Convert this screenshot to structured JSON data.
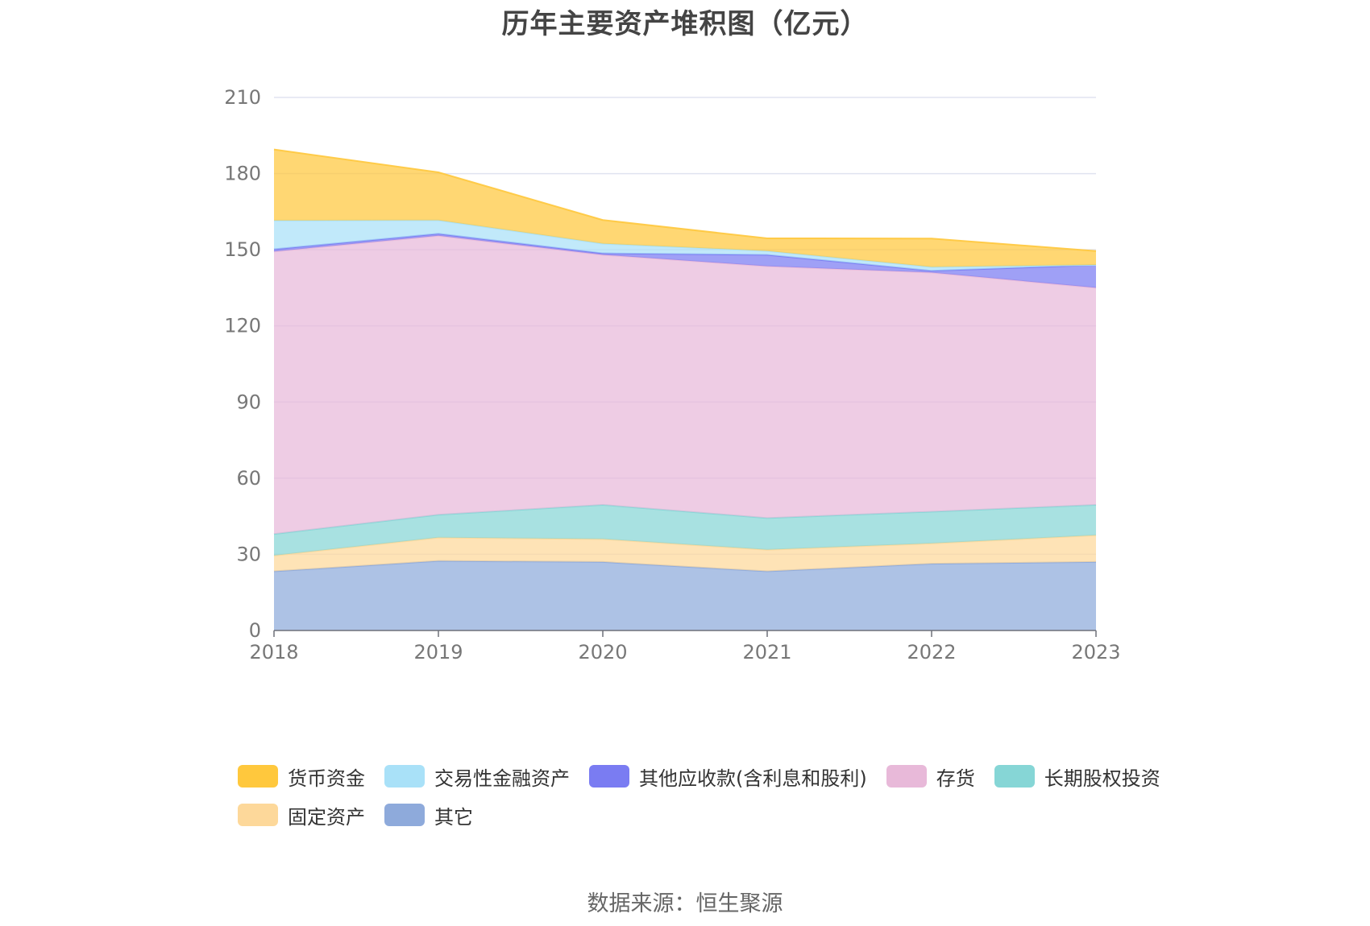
{
  "title": "历年主要资产堆积图（亿元）",
  "source": "数据来源：恒生聚源",
  "chart_data": {
    "type": "area",
    "stacked": true,
    "x": [
      "2018",
      "2019",
      "2020",
      "2021",
      "2022",
      "2023"
    ],
    "ylim": [
      0,
      210
    ],
    "yticks": [
      0,
      30,
      60,
      90,
      120,
      150,
      180,
      210
    ],
    "grid": true,
    "legend_position": "bottom",
    "series": [
      {
        "name": "其它",
        "color": "#8EAADB",
        "values": [
          23.3,
          27.4,
          27.0,
          23.3,
          26.3,
          27.0
        ]
      },
      {
        "name": "固定资产",
        "color": "#FDD89A",
        "values": [
          6.2,
          9.2,
          9.0,
          8.5,
          8.0,
          10.5
        ]
      },
      {
        "name": "长期股权投资",
        "color": "#86D6D6",
        "values": [
          8.5,
          9.0,
          13.5,
          12.5,
          12.5,
          12.0
        ]
      },
      {
        "name": "存货",
        "color": "#E8B9D9",
        "values": [
          111.3,
          109.9,
          98.5,
          99.2,
          94.2,
          85.5
        ]
      },
      {
        "name": "其他应收款(含利息和股利)",
        "color": "#7A7CF2",
        "values": [
          0.9,
          0.8,
          0.6,
          4.5,
          0.7,
          9.0
        ]
      },
      {
        "name": "交易性金融资产",
        "color": "#A9E1F8",
        "values": [
          11.3,
          5.3,
          3.8,
          1.5,
          1.5,
          0.0
        ]
      },
      {
        "name": "货币资金",
        "color": "#FFC83D",
        "values": [
          28.0,
          18.9,
          9.3,
          5.0,
          11.2,
          5.5
        ]
      }
    ]
  },
  "legend_order": [
    "货币资金",
    "交易性金融资产",
    "其他应收款(含利息和股利)",
    "存货",
    "长期股权投资",
    "固定资产",
    "其它"
  ]
}
